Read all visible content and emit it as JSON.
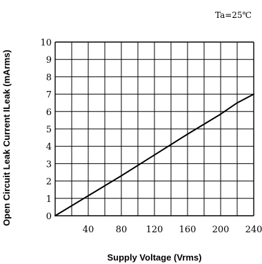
{
  "chart_data": {
    "type": "line",
    "annotation": "Ta=25℃",
    "xlabel": "Supply Voltage (Vrms)",
    "ylabel": "Open Circuit Leak Current ILeak (mArms)",
    "xlim": [
      0,
      240
    ],
    "ylim": [
      0,
      10
    ],
    "x_ticks": [
      40,
      80,
      120,
      160,
      200,
      240
    ],
    "y_ticks": [
      0,
      1,
      2,
      3,
      4,
      5,
      6,
      7,
      8,
      9,
      10
    ],
    "x_grid_step": 20,
    "y_grid_step": 1,
    "grid": true,
    "series": [
      {
        "points": [
          [
            0,
            0
          ],
          [
            40,
            1.15
          ],
          [
            80,
            2.3
          ],
          [
            120,
            3.5
          ],
          [
            160,
            4.7
          ],
          [
            200,
            5.85
          ],
          [
            220,
            6.5
          ],
          [
            240,
            7.0
          ]
        ]
      }
    ],
    "colors": {
      "line": "#000000",
      "grid": "#000000"
    }
  }
}
